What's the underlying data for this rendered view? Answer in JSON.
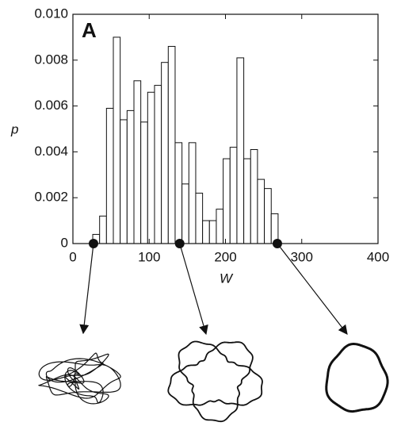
{
  "chart_data": {
    "type": "histogram",
    "panel_label": "A",
    "x_label": "W",
    "y_label": "p",
    "bins": [
      26,
      35,
      44,
      53,
      62,
      71,
      80,
      89,
      98,
      107,
      116,
      125,
      134,
      143,
      152,
      161,
      170,
      179,
      188,
      197,
      206,
      215,
      224,
      233,
      242,
      251,
      260,
      269
    ],
    "values": [
      0.0004,
      0.0012,
      0.0059,
      0.009,
      0.0054,
      0.0058,
      0.0071,
      0.0053,
      0.0066,
      0.0069,
      0.0079,
      0.0086,
      0.0044,
      0.0026,
      0.0044,
      0.0022,
      0.001,
      0.001,
      0.0015,
      0.0037,
      0.0042,
      0.0081,
      0.0037,
      0.0041,
      0.0028,
      0.0024,
      0.0013
    ],
    "color": "#ffffff",
    "xlim": [
      0,
      400
    ],
    "xticks": [
      0,
      100,
      200,
      300,
      400
    ],
    "ylim": [
      0,
      0.01
    ],
    "yticks": [
      0,
      0.002,
      0.004,
      0.006,
      0.008,
      {
        "value": 0.01,
        "label": "0.010"
      }
    ],
    "markers": [
      27,
      140,
      268
    ]
  }
}
